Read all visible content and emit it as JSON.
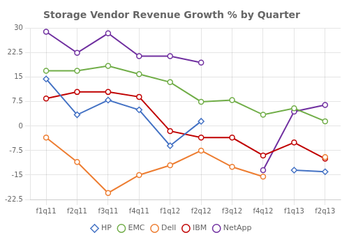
{
  "chart_data": {
    "type": "line",
    "title": "Storage Vendor Revenue Growth % by Quarter",
    "categories": [
      "f1q11",
      "f2q11",
      "f3q11",
      "f4q11",
      "f1q12",
      "f2q12",
      "f3q12",
      "f4q12",
      "f1q13",
      "f2q13"
    ],
    "series": [
      {
        "name": "HP",
        "color": "#4472c4",
        "marker": "diamond",
        "values": [
          14.5,
          3.5,
          8.0,
          5.0,
          -6.0,
          1.5,
          null,
          null,
          -13.5,
          -14.0
        ]
      },
      {
        "name": "EMC",
        "color": "#70ad47",
        "marker": "circle",
        "values": [
          17.0,
          17.0,
          18.5,
          16.0,
          13.5,
          7.5,
          8.0,
          3.5,
          5.5,
          1.5
        ]
      },
      {
        "name": "Dell",
        "color": "#ed7d31",
        "marker": "circle",
        "values": [
          -3.5,
          -11.0,
          -20.5,
          -15.0,
          -12.0,
          -7.5,
          -12.5,
          -15.5,
          null,
          -9.5
        ]
      },
      {
        "name": "IBM",
        "color": "#c00000",
        "marker": "circle",
        "values": [
          8.5,
          10.5,
          10.5,
          9.0,
          -1.5,
          -3.5,
          -3.5,
          -9.0,
          -5.0,
          -10.0
        ]
      },
      {
        "name": "NetApp",
        "color": "#7030a0",
        "marker": "circle",
        "values": [
          29.0,
          22.5,
          28.5,
          21.5,
          21.5,
          19.5,
          null,
          -13.5,
          4.5,
          6.5
        ]
      }
    ],
    "ylim": [
      -22.5,
      30
    ],
    "yticks": [
      -22.5,
      -15,
      -7.5,
      0,
      7.5,
      15,
      22.5,
      30
    ],
    "grid": true,
    "legend": "bottom"
  }
}
